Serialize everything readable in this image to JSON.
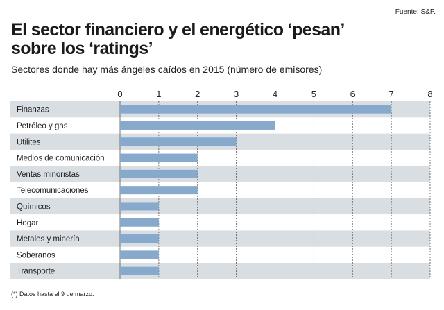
{
  "source": "Fuente: S&P.",
  "title_line1": "El sector financiero y el energético ‘pesan’",
  "title_line2": "sobre los ‘ratings’",
  "footnote": "(*) Datos hasta el 9 de marzo.",
  "chart_data": {
    "type": "bar",
    "orientation": "horizontal",
    "title": "El sector financiero y el energético ‘pesan’ sobre los ‘ratings’",
    "subtitle": "Sectores donde hay más ángeles caídos en 2015 (número de emisores)",
    "categories": [
      "Finanzas",
      "Petróleo y gas",
      "Utilites",
      "Medios de comunicación",
      "Ventas minoristas",
      "Telecomunicaciones",
      "Químicos",
      "Hogar",
      "Metales y minería",
      "Soberanos",
      "Transporte"
    ],
    "values": [
      7,
      4,
      3,
      2,
      2,
      2,
      1,
      1,
      1,
      1,
      1
    ],
    "xlim": [
      0,
      8
    ],
    "xticks": [
      "0",
      "1",
      "2",
      "3",
      "4",
      "5",
      "6",
      "7",
      "8"
    ],
    "grid": true,
    "legend": "none",
    "bar_color": "#86a9cc",
    "stripe_color": "#d9dee3"
  }
}
